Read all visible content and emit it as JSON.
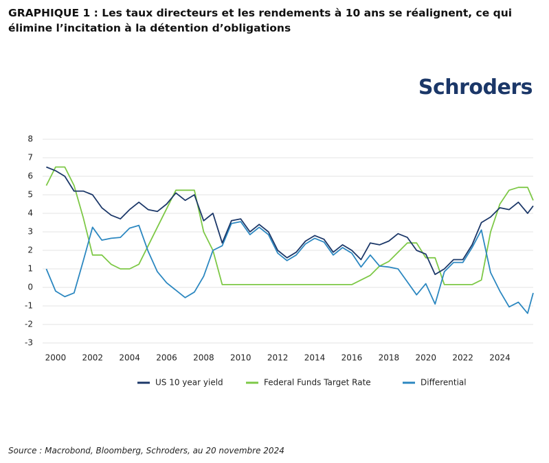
{
  "brand": "Schroders",
  "chart_data": {
    "type": "line",
    "title": "GRAPHIQUE 1 : Les taux directeurs et les rendements à 10 ans se réalignent, ce qui élimine l’incitation à la détention d’obligations",
    "source": "Source : Macrobond, Bloomberg, Schroders, au 20 novembre 2024",
    "x": [
      1999.5,
      2000,
      2000.5,
      2001,
      2001.5,
      2002,
      2002.5,
      2003,
      2003.5,
      2004,
      2004.5,
      2005,
      2005.5,
      2006,
      2006.5,
      2007,
      2007.5,
      2008,
      2008.5,
      2009,
      2009.5,
      2010,
      2010.5,
      2011,
      2011.5,
      2012,
      2012.5,
      2013,
      2013.5,
      2014,
      2014.5,
      2015,
      2015.5,
      2016,
      2016.5,
      2017,
      2017.5,
      2018,
      2018.5,
      2019,
      2019.5,
      2020,
      2020.5,
      2021,
      2021.5,
      2022,
      2022.5,
      2023,
      2023.5,
      2024,
      2024.5,
      2025,
      2025.5,
      2025.8
    ],
    "series": [
      {
        "name": "US 10 year yield",
        "color": "#1b3768",
        "values": [
          6.5,
          6.3,
          6.0,
          5.2,
          5.2,
          5.0,
          4.3,
          3.9,
          3.7,
          4.2,
          4.6,
          4.2,
          4.1,
          4.5,
          5.1,
          4.7,
          5.0,
          3.6,
          4.0,
          2.4,
          3.6,
          3.7,
          3.0,
          3.4,
          3.0,
          2.0,
          1.6,
          1.9,
          2.5,
          2.8,
          2.6,
          1.9,
          2.3,
          2.0,
          1.5,
          2.4,
          2.3,
          2.5,
          2.9,
          2.7,
          2.0,
          1.8,
          0.7,
          1.0,
          1.5,
          1.5,
          2.3,
          3.5,
          3.8,
          4.3,
          4.2,
          4.6,
          4.0,
          4.4
        ]
      },
      {
        "name": "Federal Funds Target Rate",
        "color": "#7dc846",
        "values": [
          5.5,
          6.5,
          6.5,
          5.5,
          3.75,
          1.75,
          1.75,
          1.25,
          1.0,
          1.0,
          1.25,
          2.25,
          3.25,
          4.25,
          5.25,
          5.25,
          5.25,
          3.0,
          2.0,
          0.15,
          0.15,
          0.15,
          0.15,
          0.15,
          0.15,
          0.15,
          0.15,
          0.15,
          0.15,
          0.15,
          0.15,
          0.15,
          0.15,
          0.15,
          0.4,
          0.65,
          1.15,
          1.4,
          1.9,
          2.4,
          2.4,
          1.6,
          1.6,
          0.15,
          0.15,
          0.15,
          0.15,
          0.4,
          3.0,
          4.5,
          5.25,
          5.4,
          5.4,
          4.7
        ]
      },
      {
        "name": "Differential",
        "color": "#2b87c0",
        "values": [
          1.0,
          -0.2,
          -0.5,
          -0.3,
          1.45,
          3.25,
          2.55,
          2.65,
          2.7,
          3.2,
          3.35,
          1.95,
          0.85,
          0.25,
          -0.15,
          -0.55,
          -0.25,
          0.6,
          2.0,
          2.25,
          3.45,
          3.55,
          2.85,
          3.25,
          2.85,
          1.85,
          1.45,
          1.75,
          2.35,
          2.65,
          2.45,
          1.75,
          2.15,
          1.85,
          1.1,
          1.75,
          1.15,
          1.1,
          1.0,
          0.3,
          -0.4,
          0.2,
          -0.9,
          0.85,
          1.35,
          1.35,
          2.15,
          3.1,
          0.8,
          -0.2,
          -1.05,
          -0.8,
          -1.4,
          -0.3
        ]
      }
    ],
    "xlim": [
      1999.3,
      2025.8
    ],
    "xticks": [
      2000,
      2002,
      2004,
      2006,
      2008,
      2010,
      2012,
      2014,
      2016,
      2018,
      2020,
      2022,
      2024
    ],
    "ylim": [
      -3,
      8
    ],
    "yticks": [
      -3,
      -2,
      -1,
      0,
      1,
      2,
      3,
      4,
      5,
      6,
      7,
      8
    ],
    "grid": true
  }
}
